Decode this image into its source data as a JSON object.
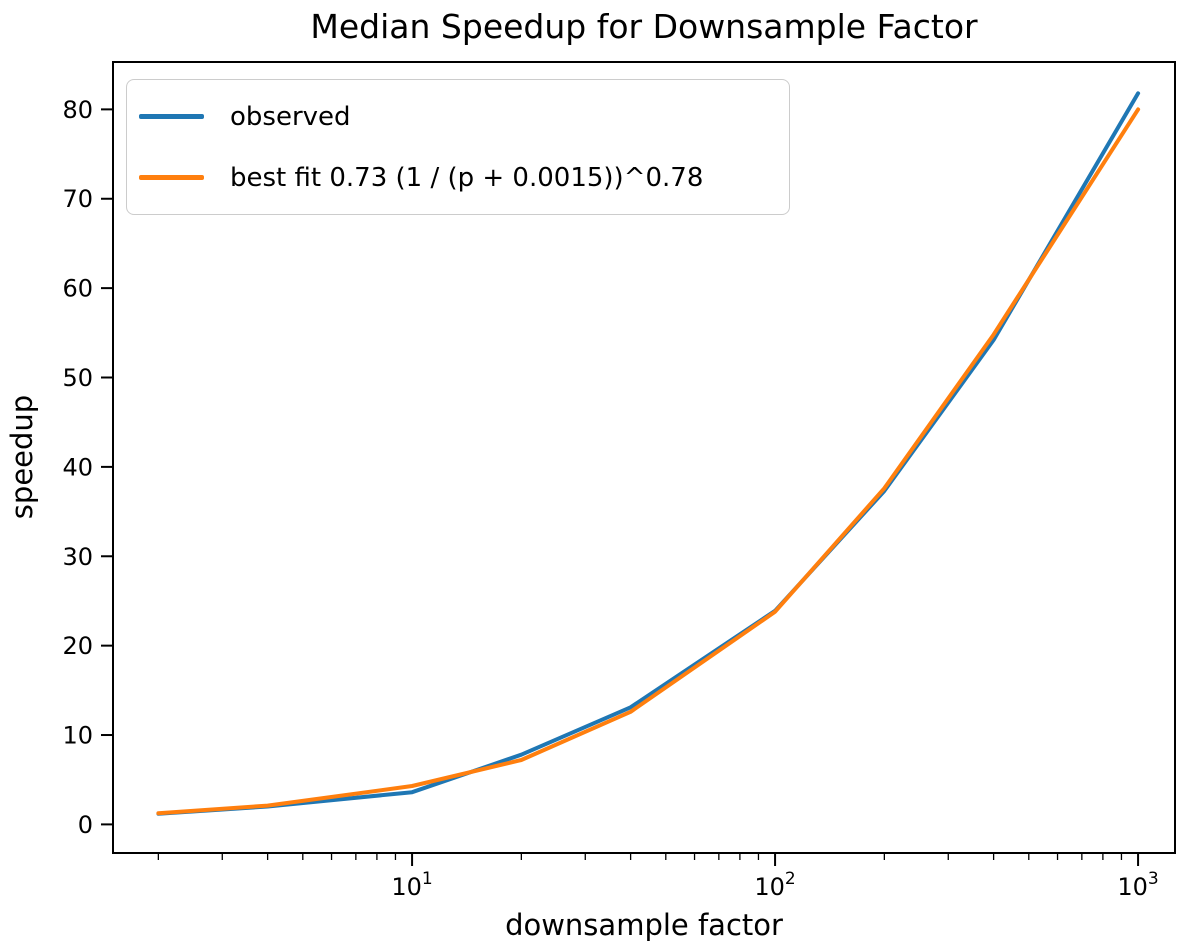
{
  "chart_data": {
    "type": "line",
    "title": "Median Speedup for Downsample Factor",
    "xlabel": "downsample factor",
    "ylabel": "speedup",
    "xscale": "log",
    "grid": false,
    "legend_position": "upper left",
    "xlim": [
      1.5,
      1264
    ],
    "ylim": [
      -3.2,
      85.3
    ],
    "y_ticks": [
      0,
      10,
      20,
      30,
      40,
      50,
      60,
      70,
      80
    ],
    "x_major_ticks": [
      {
        "value": 10,
        "label": "10^1"
      },
      {
        "value": 100,
        "label": "10^2"
      },
      {
        "value": 1000,
        "label": "10^3"
      }
    ],
    "x_minor_ticks": true,
    "x": [
      2,
      4,
      10,
      20,
      40,
      100,
      200,
      400,
      1000
    ],
    "series": [
      {
        "name": "observed",
        "color": "#1f77b4",
        "values": [
          1.2,
          2.0,
          3.6,
          7.8,
          13.1,
          23.9,
          37.3,
          54.2,
          81.8
        ]
      },
      {
        "name": "best fit 0.73 (1 / (p + 0.0015))^0.78",
        "color": "#ff7f0e",
        "values": [
          1.25,
          2.1,
          4.3,
          7.2,
          12.6,
          23.8,
          37.6,
          54.8,
          80.0
        ]
      }
    ]
  }
}
